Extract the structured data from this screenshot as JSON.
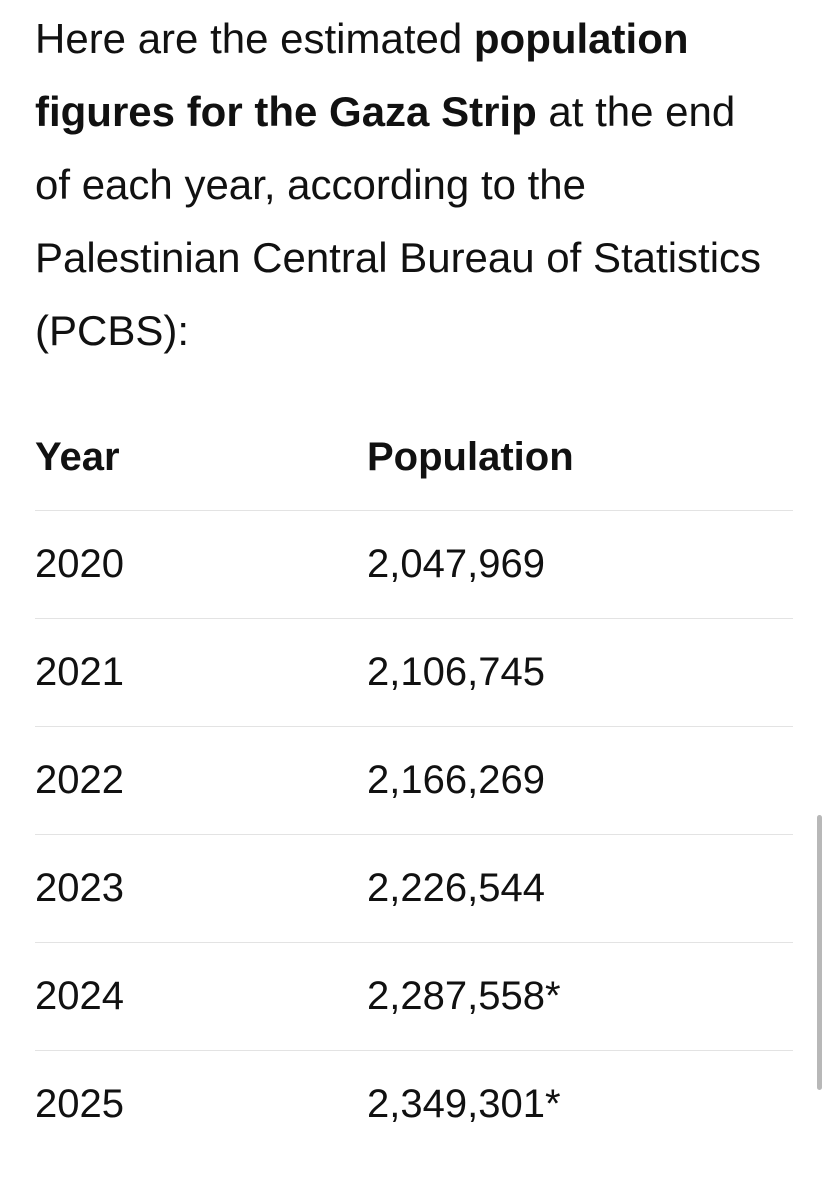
{
  "intro": {
    "before": "Here are the estimated ",
    "bold": "population figures for the Gaza Strip",
    "after": " at the end of each year, according to the Palestinian Central Bureau of Statistics (PCBS):"
  },
  "table": {
    "header": [
      "Year",
      "Population"
    ],
    "rows": [
      [
        "2020",
        "2,047,969"
      ],
      [
        "2021",
        "2,106,745"
      ],
      [
        "2022",
        "2,166,269"
      ],
      [
        "2023",
        "2,226,544"
      ],
      [
        "2024",
        "2,287,558*"
      ],
      [
        "2025",
        "2,349,301*"
      ]
    ]
  }
}
